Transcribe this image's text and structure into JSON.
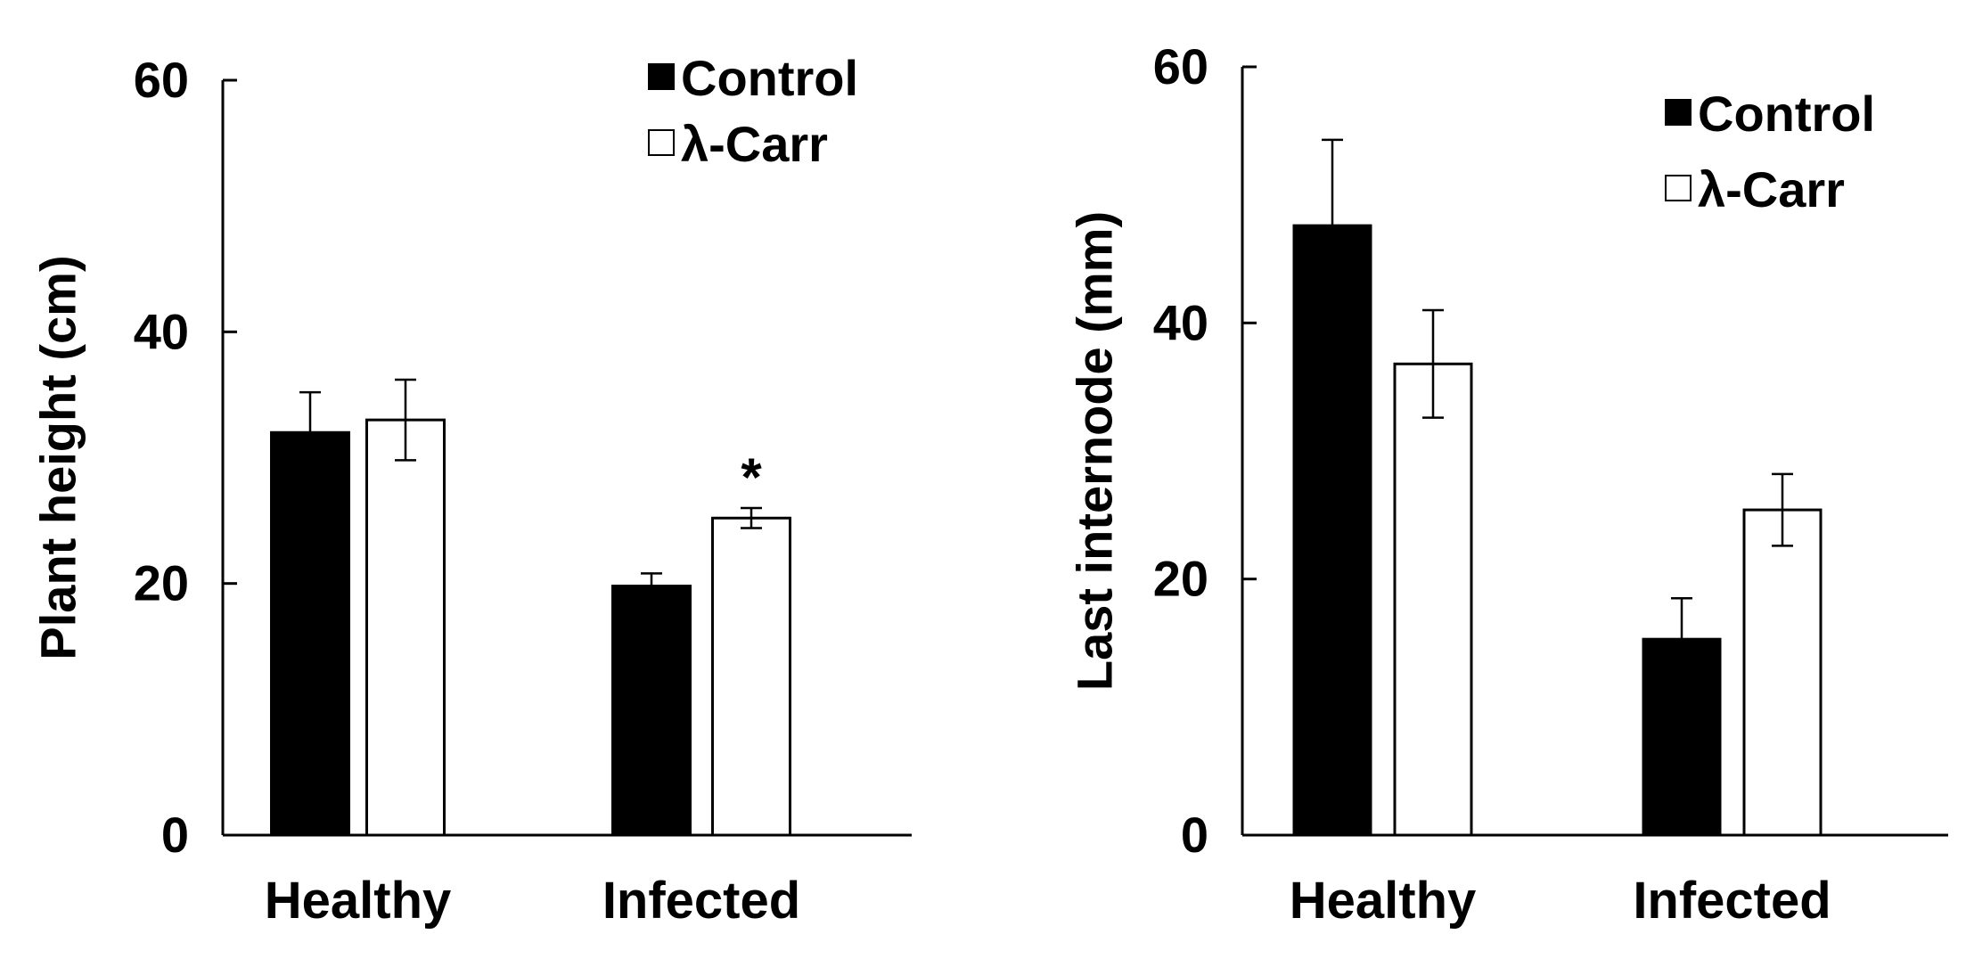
{
  "colors": {
    "control": "#000000",
    "treated": "#ffffff",
    "axis": "#000000"
  },
  "chart_data": [
    {
      "type": "bar",
      "ylabel": "Plant height (cm)",
      "xlabel": "",
      "ylim": [
        0,
        60
      ],
      "yticks": [
        "0",
        "20",
        "40",
        "60"
      ],
      "categories": [
        "Healthy",
        "Infected"
      ],
      "legend_position": "top-right",
      "series": [
        {
          "name": "Control",
          "values": [
            32,
            19.8
          ],
          "errors": [
            3.2,
            1.0
          ]
        },
        {
          "name": "λ-Carr",
          "values": [
            33,
            25.2
          ],
          "errors": [
            3.2,
            0.8
          ]
        }
      ],
      "annotations": [
        {
          "text": "*",
          "category": 1,
          "series": 1
        }
      ]
    },
    {
      "type": "bar",
      "ylabel": "Last internode (mm)",
      "xlabel": "",
      "ylim": [
        0,
        60
      ],
      "yticks": [
        "0",
        "20",
        "40",
        "60"
      ],
      "categories": [
        "Healthy",
        "Infected"
      ],
      "legend_position": "top-right",
      "series": [
        {
          "name": "Control",
          "values": [
            47.6,
            15.3
          ],
          "errors": [
            6.7,
            3.2
          ]
        },
        {
          "name": "λ-Carr",
          "values": [
            36.8,
            25.4
          ],
          "errors": [
            4.2,
            2.8
          ]
        }
      ],
      "annotations": []
    }
  ]
}
